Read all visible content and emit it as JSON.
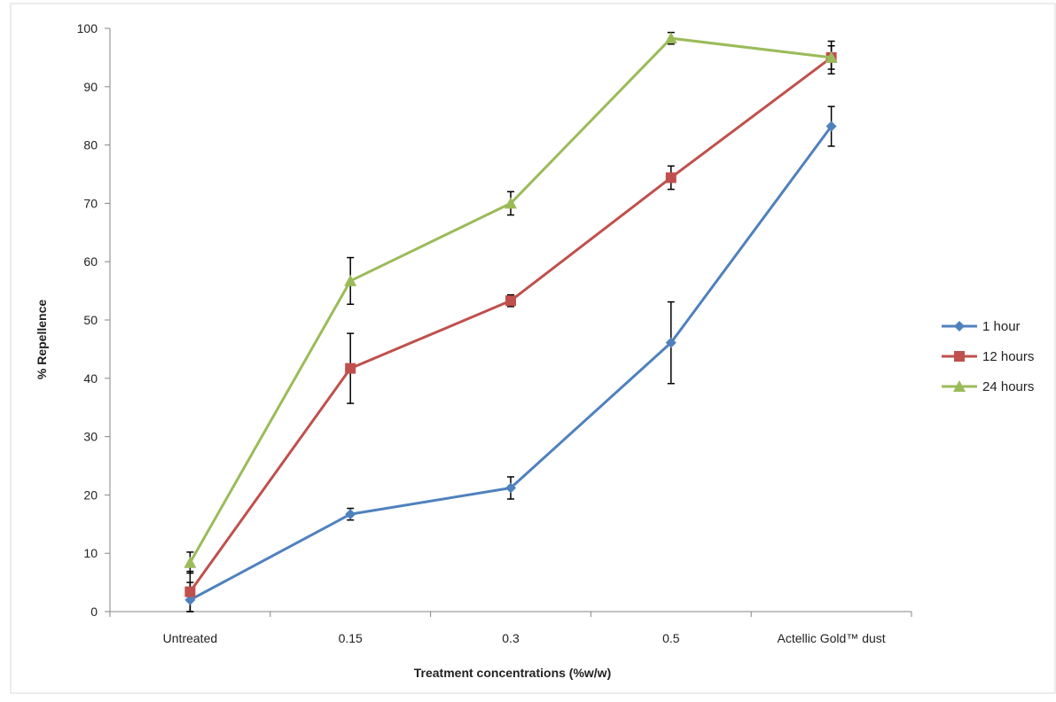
{
  "chart_data": {
    "type": "line",
    "title": "",
    "xlabel": "Treatment concentrations (%w/w)",
    "ylabel": "% Repellence",
    "categories": [
      "Untreated",
      "0.15",
      "0.3",
      "0.5",
      "Actellic Gold™ dust"
    ],
    "ylim": [
      0,
      100
    ],
    "yticks": [
      0,
      10,
      20,
      30,
      40,
      50,
      60,
      70,
      80,
      90,
      100
    ],
    "grid": false,
    "legend_position": "right",
    "error_bars": true,
    "series": [
      {
        "name": "1 hour",
        "color": "#4f81bd",
        "marker": "diamond",
        "values": [
          2,
          16.7,
          21.2,
          46.1,
          83.2
        ],
        "errors": [
          3,
          1,
          1.9,
          7,
          3.4
        ]
      },
      {
        "name": "12 hours",
        "color": "#c0504d",
        "marker": "square",
        "values": [
          3.4,
          41.7,
          53.3,
          74.4,
          95
        ],
        "errors": [
          3.5,
          6,
          1,
          2,
          2.8
        ]
      },
      {
        "name": "24 hours",
        "color": "#9bbb59",
        "marker": "triangle",
        "values": [
          8.4,
          56.7,
          70,
          98.3,
          95
        ],
        "errors": [
          1.8,
          4,
          2,
          1,
          2
        ]
      }
    ]
  }
}
